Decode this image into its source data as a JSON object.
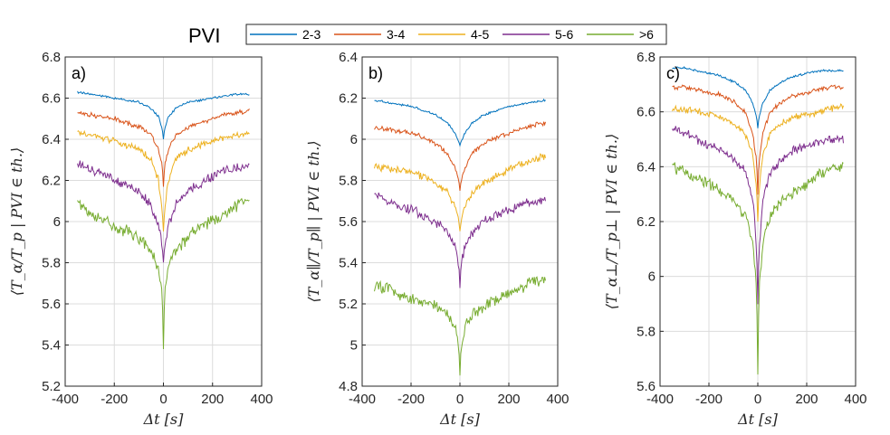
{
  "legend": {
    "title": "PVI",
    "entries": [
      {
        "label": "2-3",
        "color": "#0072BD"
      },
      {
        "label": "3-4",
        "color": "#D95319"
      },
      {
        "label": "4-5",
        "color": "#EDB120"
      },
      {
        "label": "5-6",
        "color": "#7E2F8E"
      },
      {
        "label": ">6",
        "color": "#77AC30"
      }
    ]
  },
  "chart_data": [
    {
      "type": "line",
      "panel": "a)",
      "xlabel": "Δt [s]",
      "ylabel": "⟨T_α/T_p | PVI ∈ th.⟩",
      "xlim": [
        -400,
        400
      ],
      "ylim": [
        5.2,
        6.8
      ],
      "xticks": [
        -400,
        -200,
        0,
        200,
        400
      ],
      "yticks": [
        5.2,
        5.4,
        5.6,
        5.8,
        6,
        6.2,
        6.4,
        6.6,
        6.8
      ],
      "ytick_labels": [
        "5.2",
        "5.4",
        "5.6",
        "5.8",
        "6",
        "6.2",
        "6.4",
        "6.6",
        "6.8"
      ],
      "grid": true,
      "x": [
        -350,
        -300,
        -250,
        -200,
        -150,
        -100,
        -50,
        -20,
        -5,
        0,
        5,
        20,
        50,
        100,
        150,
        200,
        250,
        300,
        350
      ],
      "series": [
        {
          "name": "2-3",
          "values": [
            6.63,
            6.62,
            6.61,
            6.6,
            6.59,
            6.58,
            6.55,
            6.51,
            6.45,
            6.4,
            6.45,
            6.51,
            6.55,
            6.58,
            6.59,
            6.6,
            6.61,
            6.62,
            6.62
          ]
        },
        {
          "name": "3-4",
          "values": [
            6.53,
            6.52,
            6.51,
            6.5,
            6.48,
            6.46,
            6.42,
            6.35,
            6.27,
            6.17,
            6.27,
            6.35,
            6.42,
            6.46,
            6.48,
            6.5,
            6.52,
            6.53,
            6.54
          ]
        },
        {
          "name": "4-5",
          "values": [
            6.43,
            6.42,
            6.41,
            6.39,
            6.37,
            6.35,
            6.3,
            6.2,
            6.05,
            5.95,
            6.05,
            6.2,
            6.3,
            6.35,
            6.37,
            6.39,
            6.41,
            6.42,
            6.43
          ]
        },
        {
          "name": "5-6",
          "values": [
            6.29,
            6.25,
            6.23,
            6.2,
            6.18,
            6.15,
            6.08,
            5.98,
            5.88,
            5.8,
            5.88,
            5.98,
            6.08,
            6.15,
            6.18,
            6.22,
            6.25,
            6.26,
            6.28
          ]
        },
        {
          "name": ">6",
          "values": [
            6.1,
            6.04,
            6.02,
            5.98,
            5.95,
            5.92,
            5.86,
            5.78,
            5.65,
            5.38,
            5.65,
            5.78,
            5.86,
            5.92,
            5.98,
            6.0,
            6.04,
            6.08,
            6.1
          ]
        }
      ]
    },
    {
      "type": "line",
      "panel": "b)",
      "xlabel": "Δt [s]",
      "ylabel": "⟨T_α∥/T_p∥ | PVI ∈ th.⟩",
      "xlim": [
        -400,
        400
      ],
      "ylim": [
        4.8,
        6.4
      ],
      "xticks": [
        -400,
        -200,
        0,
        200,
        400
      ],
      "yticks": [
        4.8,
        5,
        5.2,
        5.4,
        5.6,
        5.8,
        6,
        6.2,
        6.4
      ],
      "ytick_labels": [
        "4.8",
        "5",
        "5.2",
        "5.4",
        "5.6",
        "5.8",
        "6",
        "6.2",
        "6.4"
      ],
      "grid": true,
      "x": [
        -350,
        -300,
        -250,
        -200,
        -150,
        -100,
        -50,
        -20,
        -5,
        0,
        5,
        20,
        50,
        100,
        150,
        200,
        250,
        300,
        350
      ],
      "series": [
        {
          "name": "2-3",
          "values": [
            6.19,
            6.18,
            6.17,
            6.16,
            6.14,
            6.12,
            6.08,
            6.03,
            5.99,
            5.97,
            5.99,
            6.03,
            6.08,
            6.12,
            6.14,
            6.16,
            6.17,
            6.18,
            6.19
          ]
        },
        {
          "name": "3-4",
          "values": [
            6.06,
            6.05,
            6.04,
            6.03,
            6.01,
            5.98,
            5.93,
            5.86,
            5.8,
            5.75,
            5.8,
            5.86,
            5.93,
            5.98,
            6.01,
            6.03,
            6.05,
            6.07,
            6.08
          ]
        },
        {
          "name": "4-5",
          "values": [
            5.87,
            5.86,
            5.85,
            5.84,
            5.82,
            5.79,
            5.74,
            5.67,
            5.6,
            5.55,
            5.6,
            5.67,
            5.74,
            5.79,
            5.82,
            5.85,
            5.88,
            5.9,
            5.92
          ]
        },
        {
          "name": "5-6",
          "values": [
            5.74,
            5.7,
            5.68,
            5.66,
            5.63,
            5.6,
            5.55,
            5.48,
            5.4,
            5.28,
            5.4,
            5.48,
            5.55,
            5.6,
            5.63,
            5.66,
            5.68,
            5.7,
            5.71
          ]
        },
        {
          "name": ">6",
          "values": [
            5.29,
            5.27,
            5.25,
            5.23,
            5.21,
            5.19,
            5.15,
            5.08,
            5.0,
            4.85,
            5.0,
            5.08,
            5.15,
            5.19,
            5.22,
            5.25,
            5.28,
            5.31,
            5.32
          ]
        }
      ]
    },
    {
      "type": "line",
      "panel": "c)",
      "xlabel": "Δt [s]",
      "ylabel": "⟨T_α⊥/T_p⊥ | PVI ∈ th.⟩",
      "xlim": [
        -400,
        400
      ],
      "ylim": [
        5.6,
        6.8
      ],
      "xticks": [
        -400,
        -200,
        0,
        200,
        400
      ],
      "yticks": [
        5.6,
        5.8,
        6,
        6.2,
        6.4,
        6.6,
        6.8
      ],
      "ytick_labels": [
        "5.6",
        "5.8",
        "6",
        "6.2",
        "6.4",
        "6.6",
        "6.8"
      ],
      "grid": true,
      "x": [
        -350,
        -300,
        -250,
        -200,
        -150,
        -100,
        -50,
        -20,
        -5,
        0,
        5,
        20,
        50,
        100,
        150,
        200,
        250,
        300,
        350
      ],
      "series": [
        {
          "name": "2-3",
          "values": [
            6.76,
            6.76,
            6.75,
            6.74,
            6.73,
            6.71,
            6.68,
            6.63,
            6.58,
            6.54,
            6.58,
            6.63,
            6.68,
            6.71,
            6.73,
            6.74,
            6.75,
            6.75,
            6.75
          ]
        },
        {
          "name": "3-4",
          "values": [
            6.69,
            6.69,
            6.68,
            6.67,
            6.66,
            6.64,
            6.6,
            6.52,
            6.42,
            6.3,
            6.42,
            6.52,
            6.6,
            6.64,
            6.66,
            6.67,
            6.68,
            6.69,
            6.69
          ]
        },
        {
          "name": "4-5",
          "values": [
            6.61,
            6.61,
            6.6,
            6.59,
            6.58,
            6.56,
            6.52,
            6.44,
            6.32,
            6.2,
            6.32,
            6.44,
            6.52,
            6.56,
            6.58,
            6.59,
            6.6,
            6.61,
            6.62
          ]
        },
        {
          "name": "5-6",
          "values": [
            6.54,
            6.52,
            6.5,
            6.48,
            6.46,
            6.43,
            6.38,
            6.28,
            6.1,
            5.9,
            6.1,
            6.28,
            6.38,
            6.43,
            6.46,
            6.48,
            6.49,
            6.5,
            6.5
          ]
        },
        {
          "name": ">6",
          "values": [
            6.4,
            6.38,
            6.36,
            6.34,
            6.31,
            6.28,
            6.22,
            6.12,
            5.95,
            5.64,
            5.95,
            6.12,
            6.22,
            6.28,
            6.31,
            6.34,
            6.37,
            6.39,
            6.4
          ]
        }
      ]
    }
  ]
}
